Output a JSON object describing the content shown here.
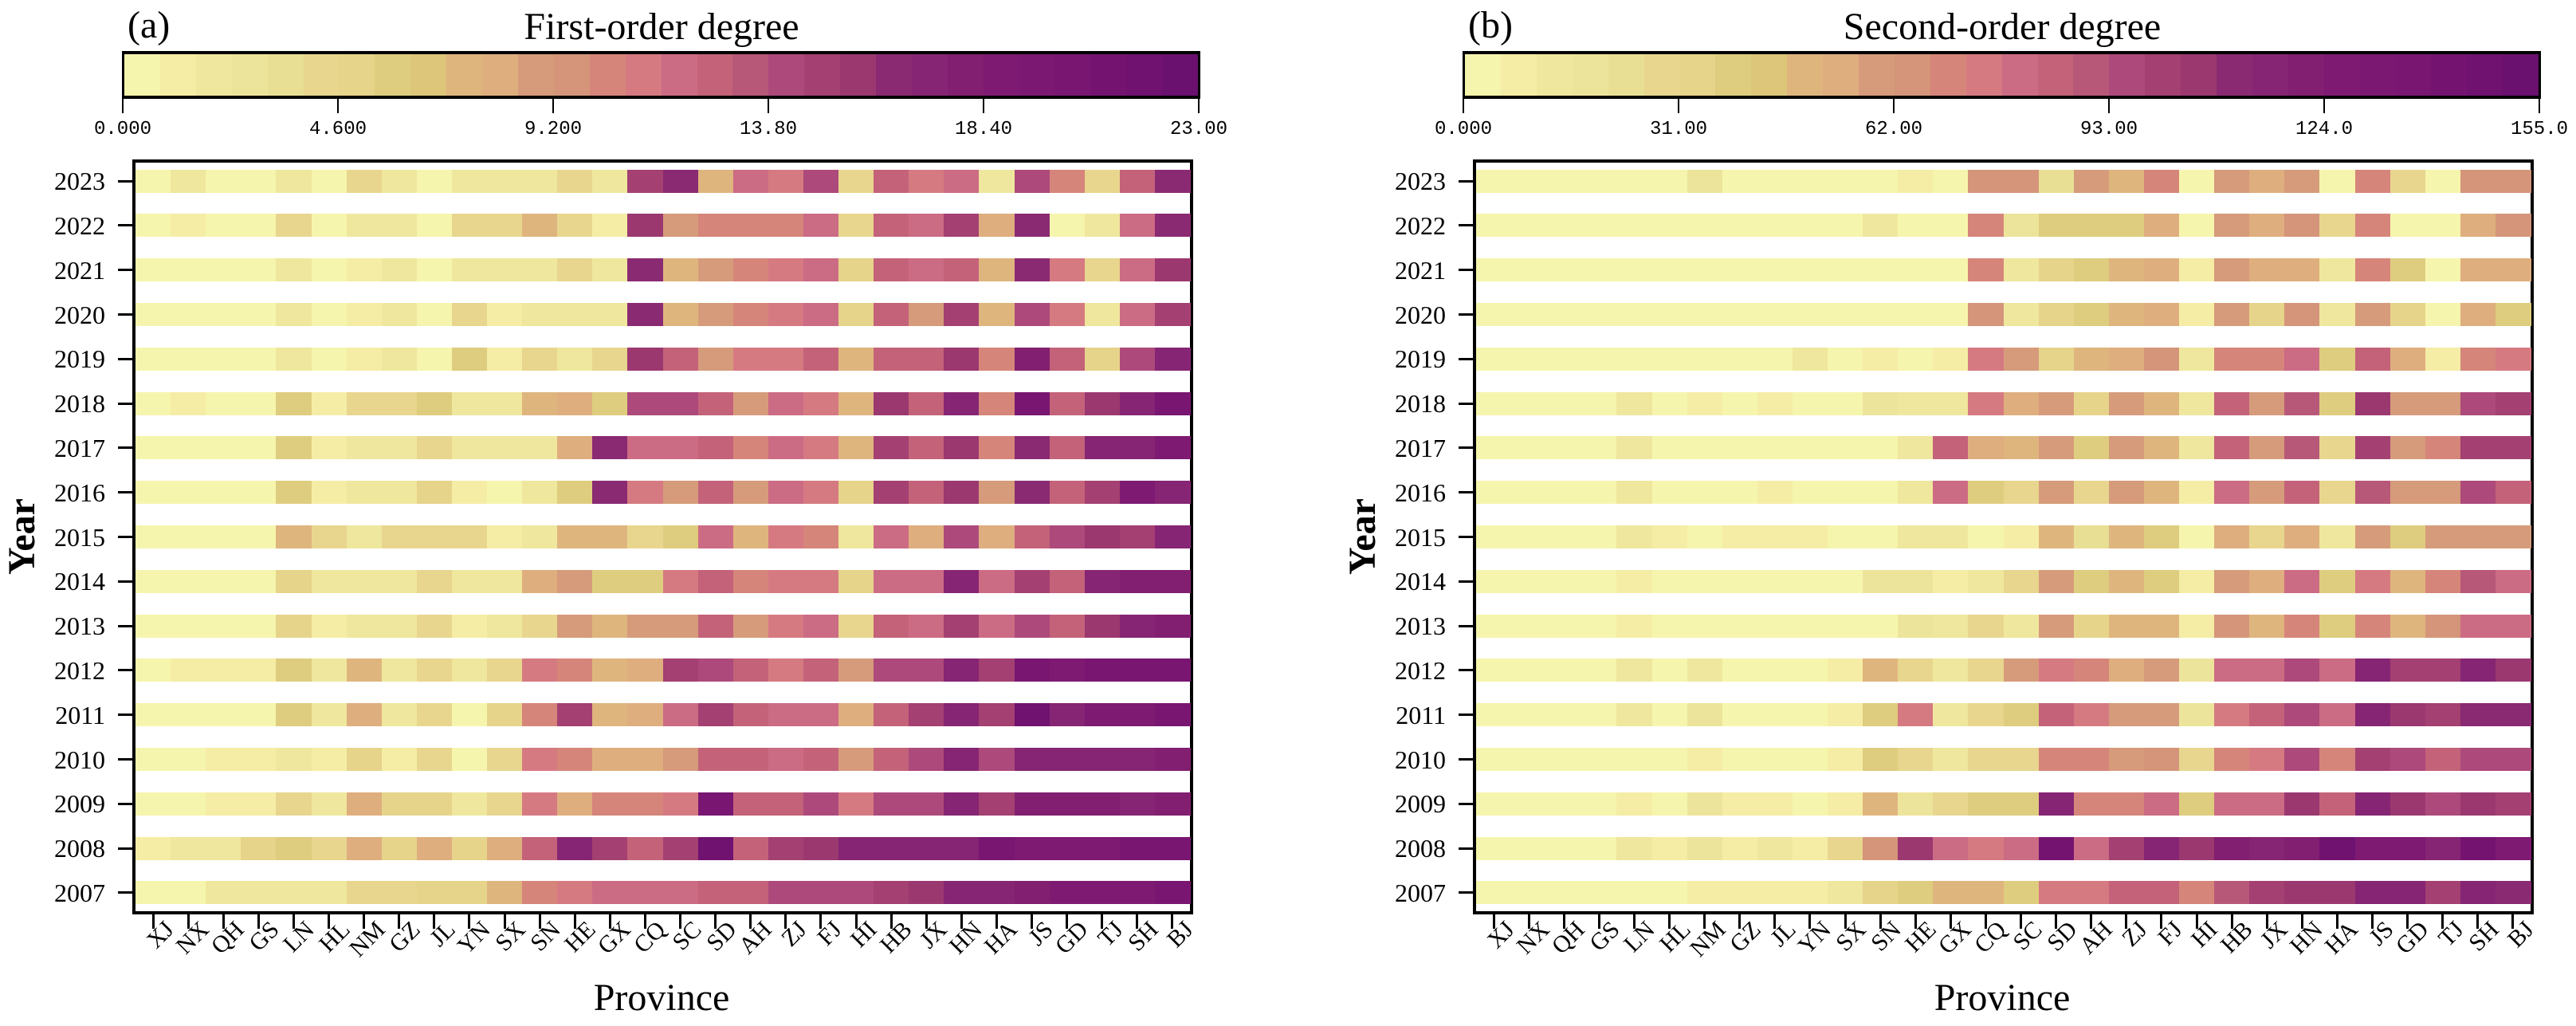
{
  "chart_data": [
    {
      "type": "heatmap",
      "panel_label": "(a)",
      "title": "First-order degree",
      "xlabel": "Province",
      "ylabel": "Year",
      "colorbar": {
        "range": [
          0,
          23
        ],
        "bins": 30,
        "ticks": [
          "0.000",
          "4.600",
          "9.200",
          "13.80",
          "18.40",
          "23.00"
        ]
      },
      "x": [
        "XJ",
        "NX",
        "QH",
        "GS",
        "LN",
        "HL",
        "NM",
        "GZ",
        "JL",
        "YN",
        "SX",
        "SN",
        "HE",
        "GX",
        "CQ",
        "SC",
        "SD",
        "AH",
        "ZJ",
        "FJ",
        "HI",
        "HB",
        "JX",
        "HN",
        "HA",
        "JS",
        "GD",
        "TJ",
        "SH",
        "BJ"
      ],
      "y": [
        "2023",
        "2022",
        "2021",
        "2020",
        "2019",
        "2018",
        "2017",
        "2016",
        "2015",
        "2014",
        "2013",
        "2012",
        "2011",
        "2010",
        "2009",
        "2008",
        "2007"
      ],
      "z": [
        [
          0.4,
          2.3,
          0.4,
          0.4,
          2.3,
          0.4,
          4.0,
          2.3,
          0.4,
          2.3,
          2.3,
          2.3,
          4.0,
          2.3,
          14.6,
          16.5,
          7.0,
          11.7,
          11.0,
          13.8,
          4.0,
          12.5,
          11.0,
          11.7,
          2.3,
          13.8,
          10.2,
          4.0,
          12.5,
          16.5
        ],
        [
          0.4,
          1.2,
          0.4,
          0.4,
          4.0,
          0.4,
          2.3,
          2.3,
          0.4,
          4.0,
          4.0,
          7.0,
          4.0,
          1.2,
          15.4,
          8.8,
          10.2,
          10.2,
          10.2,
          11.7,
          4.0,
          12.5,
          11.7,
          14.6,
          7.7,
          16.5,
          0.4,
          2.3,
          11.7,
          16.5
        ],
        [
          0.4,
          0.4,
          0.4,
          0.4,
          2.3,
          0.4,
          1.2,
          2.3,
          0.4,
          2.3,
          2.3,
          2.3,
          4.0,
          2.3,
          16.5,
          7.0,
          8.8,
          10.2,
          11.0,
          11.7,
          4.7,
          12.5,
          11.7,
          12.5,
          7.0,
          16.5,
          11.0,
          4.0,
          11.7,
          15.4
        ],
        [
          0.4,
          0.4,
          0.4,
          0.4,
          2.3,
          0.4,
          1.2,
          2.3,
          0.4,
          4.0,
          1.2,
          2.3,
          2.3,
          2.3,
          16.5,
          7.0,
          8.8,
          10.2,
          11.0,
          11.7,
          4.7,
          12.5,
          8.8,
          14.6,
          7.0,
          13.8,
          11.0,
          2.3,
          11.7,
          14.6
        ],
        [
          0.4,
          0.4,
          0.4,
          0.4,
          2.3,
          0.4,
          1.2,
          2.3,
          0.4,
          5.5,
          1.2,
          4.0,
          2.3,
          4.0,
          15.4,
          12.5,
          8.8,
          11.0,
          11.0,
          12.5,
          7.0,
          12.5,
          12.5,
          15.4,
          10.2,
          18.0,
          12.5,
          4.7,
          13.8,
          17.2
        ],
        [
          0.4,
          1.2,
          0.4,
          0.4,
          5.5,
          1.2,
          4.0,
          4.0,
          5.5,
          2.3,
          2.3,
          7.0,
          7.7,
          5.5,
          13.8,
          13.8,
          12.5,
          8.8,
          11.7,
          11.0,
          7.0,
          15.4,
          12.5,
          17.2,
          10.2,
          20.5,
          12.5,
          15.4,
          17.5,
          20.5
        ],
        [
          0.4,
          0.4,
          0.4,
          0.4,
          5.5,
          1.2,
          2.3,
          2.3,
          4.0,
          2.3,
          2.3,
          2.3,
          7.7,
          16.5,
          11.7,
          11.7,
          12.5,
          10.2,
          11.7,
          11.0,
          7.0,
          14.6,
          12.5,
          15.4,
          10.2,
          16.5,
          12.5,
          17.2,
          17.2,
          18.5
        ],
        [
          0.4,
          0.4,
          0.4,
          0.4,
          5.5,
          1.2,
          2.3,
          2.3,
          4.7,
          1.2,
          0.4,
          2.3,
          5.5,
          16.5,
          11.0,
          8.8,
          12.5,
          8.8,
          11.7,
          11.0,
          4.7,
          14.6,
          12.5,
          15.4,
          8.8,
          16.5,
          12.5,
          14.6,
          18.5,
          17.2
        ],
        [
          0.4,
          0.4,
          0.4,
          0.4,
          7.0,
          4.0,
          2.3,
          4.0,
          4.0,
          4.0,
          1.2,
          2.3,
          7.0,
          7.0,
          4.0,
          5.5,
          11.7,
          7.0,
          11.0,
          10.2,
          2.3,
          11.7,
          7.7,
          13.8,
          7.7,
          12.5,
          13.8,
          15.4,
          14.6,
          17.2
        ],
        [
          0.4,
          0.4,
          0.4,
          0.4,
          4.7,
          2.3,
          2.3,
          2.3,
          4.0,
          2.3,
          2.3,
          7.7,
          8.8,
          5.5,
          5.5,
          11.0,
          12.5,
          10.2,
          11.0,
          11.0,
          4.7,
          11.7,
          11.7,
          17.2,
          11.7,
          14.6,
          12.5,
          17.2,
          18.0,
          18.0
        ],
        [
          0.4,
          0.4,
          0.4,
          0.4,
          4.7,
          1.2,
          2.3,
          2.3,
          4.0,
          1.2,
          2.3,
          4.0,
          8.8,
          7.0,
          8.8,
          8.8,
          12.5,
          8.8,
          11.0,
          11.7,
          4.0,
          12.5,
          11.7,
          14.6,
          11.7,
          13.8,
          12.5,
          15.4,
          17.2,
          18.0
        ],
        [
          0.4,
          1.2,
          1.2,
          1.2,
          5.5,
          2.3,
          7.0,
          2.3,
          4.0,
          2.3,
          4.0,
          11.0,
          10.2,
          7.0,
          7.7,
          14.6,
          13.8,
          12.5,
          11.0,
          12.5,
          8.8,
          13.8,
          13.8,
          17.2,
          14.6,
          20.5,
          19.0,
          20.5,
          20.5,
          20.5
        ],
        [
          0.4,
          0.4,
          0.4,
          0.4,
          5.5,
          2.3,
          7.7,
          2.3,
          4.0,
          0.4,
          4.7,
          10.2,
          14.6,
          7.0,
          7.7,
          11.7,
          14.6,
          12.5,
          11.7,
          11.7,
          7.7,
          12.5,
          14.6,
          17.2,
          14.6,
          21.5,
          17.2,
          18.5,
          18.5,
          20.5
        ],
        [
          0.4,
          0.4,
          1.2,
          1.2,
          2.3,
          1.2,
          4.7,
          1.2,
          4.0,
          0.4,
          4.0,
          11.0,
          10.2,
          7.7,
          7.7,
          8.8,
          12.5,
          12.5,
          11.7,
          12.5,
          8.8,
          12.5,
          13.8,
          17.2,
          13.8,
          17.2,
          17.2,
          17.2,
          17.2,
          18.0
        ],
        [
          0.4,
          0.4,
          1.2,
          1.2,
          4.0,
          2.3,
          7.7,
          4.7,
          4.7,
          2.3,
          4.0,
          11.0,
          7.7,
          10.2,
          10.2,
          11.0,
          20.5,
          12.5,
          12.5,
          13.8,
          11.0,
          13.8,
          13.8,
          17.2,
          14.6,
          18.0,
          18.0,
          18.0,
          17.2,
          18.0
        ],
        [
          1.2,
          2.3,
          2.3,
          4.7,
          5.5,
          4.0,
          7.7,
          4.7,
          7.7,
          4.7,
          7.7,
          12.5,
          17.2,
          14.6,
          12.5,
          14.6,
          21.5,
          12.5,
          14.6,
          15.4,
          17.2,
          17.2,
          17.2,
          17.2,
          20.5,
          18.5,
          19.0,
          19.0,
          20.5,
          20.5
        ],
        [
          0.4,
          0.4,
          2.3,
          2.3,
          2.3,
          2.3,
          4.0,
          4.0,
          4.7,
          4.7,
          7.0,
          10.2,
          11.0,
          11.7,
          11.7,
          11.7,
          12.5,
          12.5,
          13.8,
          13.8,
          13.8,
          14.6,
          15.4,
          17.2,
          17.2,
          18.0,
          18.5,
          18.5,
          18.5,
          20.5
        ]
      ]
    },
    {
      "type": "heatmap",
      "panel_label": "(b)",
      "title": "Second-order degree",
      "xlabel": "Province",
      "ylabel": "Year",
      "colorbar": {
        "range": [
          0,
          155
        ],
        "bins": 30,
        "ticks": [
          "0.000",
          "31.00",
          "62.00",
          "93.00",
          "124.0",
          "155.0"
        ]
      },
      "x": [
        "XJ",
        "NX",
        "QH",
        "GS",
        "LN",
        "HL",
        "NM",
        "GZ",
        "JL",
        "YN",
        "SX",
        "SN",
        "HE",
        "GX",
        "CQ",
        "SC",
        "SD",
        "AH",
        "ZJ",
        "FJ",
        "HI",
        "HB",
        "JX",
        "HN",
        "HA",
        "JS",
        "GD",
        "TJ",
        "SH",
        "BJ"
      ],
      "y": [
        "2023",
        "2022",
        "2021",
        "2020",
        "2019",
        "2018",
        "2017",
        "2016",
        "2015",
        "2014",
        "2013",
        "2012",
        "2011",
        "2010",
        "2009",
        "2008",
        "2007"
      ],
      "z": [
        [
          2,
          2,
          2,
          2,
          2,
          2,
          20,
          2,
          2,
          2,
          2,
          2,
          7,
          2,
          63,
          63,
          22,
          57,
          47,
          69,
          2,
          57,
          52,
          57,
          2,
          69,
          28,
          2,
          63,
          63
        ],
        [
          2,
          2,
          2,
          2,
          2,
          2,
          2,
          2,
          2,
          2,
          2,
          13,
          2,
          2,
          69,
          20,
          38,
          38,
          38,
          52,
          2,
          57,
          52,
          63,
          26,
          69,
          2,
          2,
          52,
          63
        ],
        [
          2,
          2,
          2,
          2,
          2,
          2,
          2,
          2,
          2,
          2,
          2,
          2,
          2,
          2,
          69,
          13,
          32,
          38,
          47,
          52,
          7,
          57,
          52,
          52,
          13,
          69,
          38,
          2,
          52,
          52
        ],
        [
          2,
          2,
          2,
          2,
          2,
          2,
          2,
          2,
          2,
          2,
          2,
          2,
          2,
          2,
          63,
          13,
          32,
          38,
          47,
          52,
          7,
          57,
          32,
          63,
          13,
          57,
          32,
          2,
          52,
          38
        ],
        [
          2,
          2,
          2,
          2,
          2,
          2,
          2,
          2,
          2,
          13,
          2,
          7,
          2,
          7,
          73,
          57,
          32,
          47,
          52,
          63,
          13,
          69,
          69,
          78,
          38,
          85,
          52,
          7,
          69,
          73
        ],
        [
          2,
          2,
          2,
          2,
          13,
          2,
          7,
          2,
          7,
          2,
          2,
          20,
          13,
          13,
          73,
          52,
          57,
          32,
          57,
          47,
          13,
          85,
          57,
          88,
          38,
          104,
          57,
          57,
          93,
          100
        ],
        [
          2,
          2,
          2,
          2,
          13,
          2,
          2,
          2,
          2,
          2,
          2,
          2,
          13,
          85,
          52,
          47,
          57,
          38,
          57,
          47,
          13,
          85,
          57,
          88,
          28,
          100,
          57,
          69,
          100,
          100
        ],
        [
          2,
          2,
          2,
          2,
          13,
          2,
          2,
          2,
          7,
          2,
          2,
          2,
          13,
          78,
          38,
          26,
          57,
          28,
          57,
          47,
          7,
          78,
          57,
          85,
          26,
          88,
          57,
          57,
          93,
          85
        ],
        [
          2,
          2,
          2,
          2,
          13,
          7,
          2,
          7,
          7,
          7,
          2,
          2,
          13,
          13,
          2,
          7,
          47,
          22,
          47,
          38,
          2,
          52,
          26,
          52,
          13,
          57,
          38,
          57,
          57,
          57
        ],
        [
          2,
          2,
          2,
          2,
          7,
          2,
          2,
          2,
          2,
          2,
          2,
          20,
          20,
          7,
          13,
          26,
          57,
          38,
          47,
          38,
          7,
          57,
          52,
          78,
          38,
          73,
          47,
          69,
          88,
          78
        ],
        [
          2,
          2,
          2,
          2,
          7,
          2,
          2,
          2,
          2,
          2,
          2,
          2,
          20,
          13,
          26,
          13,
          57,
          32,
          47,
          47,
          7,
          63,
          47,
          69,
          38,
          69,
          47,
          63,
          78,
          78
        ],
        [
          2,
          2,
          2,
          2,
          13,
          2,
          13,
          2,
          2,
          2,
          7,
          47,
          28,
          13,
          26,
          57,
          73,
          69,
          52,
          57,
          20,
          78,
          78,
          93,
          78,
          114,
          100,
          100,
          114,
          104
        ],
        [
          2,
          2,
          2,
          2,
          13,
          2,
          20,
          2,
          2,
          2,
          7,
          38,
          73,
          13,
          26,
          38,
          85,
          73,
          57,
          57,
          20,
          73,
          85,
          93,
          78,
          114,
          104,
          100,
          109,
          109
        ],
        [
          2,
          2,
          2,
          2,
          2,
          2,
          7,
          2,
          2,
          2,
          7,
          38,
          28,
          13,
          26,
          26,
          69,
          69,
          57,
          63,
          28,
          69,
          73,
          93,
          69,
          100,
          93,
          85,
          93,
          93
        ],
        [
          2,
          2,
          2,
          2,
          7,
          2,
          20,
          7,
          7,
          2,
          7,
          47,
          20,
          28,
          38,
          38,
          114,
          69,
          69,
          78,
          38,
          78,
          78,
          104,
          85,
          114,
          104,
          93,
          104,
          100
        ],
        [
          2,
          2,
          2,
          2,
          13,
          7,
          20,
          7,
          13,
          7,
          26,
          63,
          104,
          78,
          73,
          78,
          140,
          78,
          100,
          114,
          104,
          121,
          114,
          121,
          145,
          128,
          128,
          114,
          140,
          128
        ],
        [
          2,
          2,
          2,
          2,
          2,
          2,
          7,
          7,
          7,
          7,
          13,
          32,
          38,
          47,
          47,
          38,
          73,
          73,
          85,
          85,
          69,
          88,
          100,
          104,
          104,
          114,
          114,
          100,
          114,
          109
        ]
      ]
    }
  ],
  "colormap": [
    "#f6f5ad",
    "#f5eda5",
    "#efe79d",
    "#ede49b",
    "#e8df95",
    "#e8d68e",
    "#e6d48a",
    "#decd7e",
    "#ddc57a",
    "#dfb57e",
    "#dfae7e",
    "#d69b7b",
    "#d4957a",
    "#d6857a",
    "#d67a82",
    "#cc6b84",
    "#c4627a",
    "#b85879",
    "#ad4a7b",
    "#a44072",
    "#9b3870",
    "#8a2a72",
    "#862573",
    "#821f70",
    "#7e1a72",
    "#7b1872",
    "#781671",
    "#741470",
    "#701270",
    "#6a106e"
  ]
}
